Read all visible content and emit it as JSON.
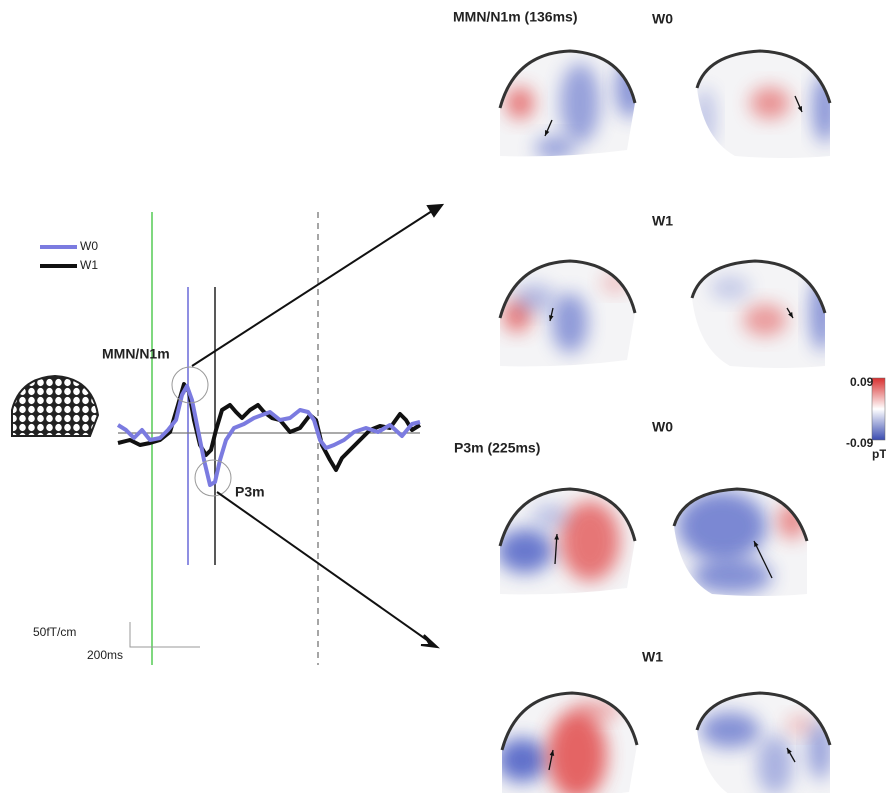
{
  "legend": [
    {
      "label": "W0",
      "color": "#7b7be0"
    },
    {
      "label": "W1",
      "color": "#111111"
    }
  ],
  "waveform": {
    "peak_labels": [
      "MMN/N1m",
      "P3m"
    ],
    "scale_y": "50fT/cm",
    "scale_x": "200ms"
  },
  "panels": [
    {
      "title": "MMN/N1m (136ms)",
      "rows": [
        "W0",
        "W1"
      ]
    },
    {
      "title": "P3m (225ms)",
      "rows": [
        "W0",
        "W1"
      ]
    }
  ],
  "colorbar": {
    "max": "0.09",
    "min": "-0.09",
    "unit": "pT"
  }
}
